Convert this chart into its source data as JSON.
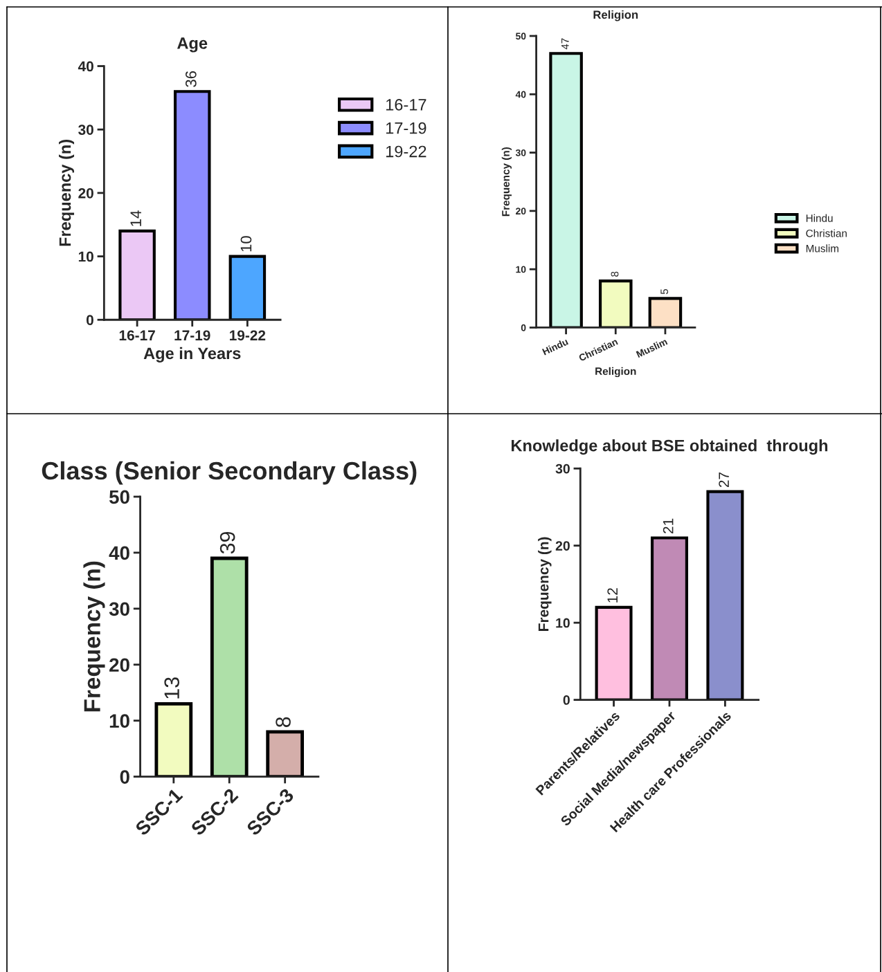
{
  "chart_data": [
    {
      "type": "bar",
      "title": "Age",
      "xlabel": "Age in Years",
      "ylabel": "Frequency (n)",
      "categories": [
        "16-17",
        "17-19",
        "19-22"
      ],
      "series": [
        {
          "name": "16-17",
          "color": "#ebc8f5",
          "values": [
            14,
            null,
            null
          ]
        },
        {
          "name": "17-19",
          "color": "#8c8cff",
          "values": [
            null,
            36,
            null
          ]
        },
        {
          "name": "19-22",
          "color": "#4da6ff",
          "values": [
            null,
            null,
            10
          ]
        }
      ],
      "ylim": [
        0,
        40
      ],
      "yticks": [
        0,
        10,
        20,
        30,
        40
      ],
      "data_labels": true,
      "legend": "right",
      "grid": false
    },
    {
      "type": "bar",
      "title": "Religion",
      "xlabel": "Religion",
      "ylabel": "Frequency (n)",
      "categories": [
        "Hindu",
        "Christian",
        "Muslim"
      ],
      "series": [
        {
          "name": "Hindu",
          "color": "#c9f5e6",
          "values": [
            47,
            null,
            null
          ]
        },
        {
          "name": "Christian",
          "color": "#f2fbbf",
          "values": [
            null,
            8,
            null
          ]
        },
        {
          "name": "Muslim",
          "color": "#fde0c5",
          "values": [
            null,
            null,
            5
          ]
        }
      ],
      "ylim": [
        0,
        50
      ],
      "yticks": [
        0,
        10,
        20,
        30,
        40,
        50
      ],
      "data_labels": true,
      "legend": "right",
      "grid": false
    },
    {
      "type": "bar",
      "title": "Class (Senior Secondary Class)",
      "ylabel": "Frequency (n)",
      "categories": [
        "SSC-1",
        "SSC-2",
        "SSC-3"
      ],
      "series": [
        {
          "colors": [
            "#f2fbbf",
            "#aee0a8",
            "#d4aeaa"
          ],
          "values": [
            13,
            39,
            8
          ]
        }
      ],
      "ylim": [
        0,
        50
      ],
      "yticks": [
        0,
        10,
        20,
        30,
        40,
        50
      ],
      "data_labels": true,
      "grid": false
    },
    {
      "type": "bar",
      "title": "Knowledge about BSE obtained  through",
      "ylabel": "Frequency (n)",
      "categories": [
        "Parents/Relatives",
        "Social Media/newspaper",
        "Health care Professionals"
      ],
      "series": [
        {
          "colors": [
            "#ffbfdf",
            "#c08ab5",
            "#8a8fcc"
          ],
          "values": [
            12,
            21,
            27
          ]
        }
      ],
      "ylim": [
        0,
        30
      ],
      "yticks": [
        0,
        10,
        20,
        30
      ],
      "data_labels": true,
      "grid": false
    }
  ]
}
